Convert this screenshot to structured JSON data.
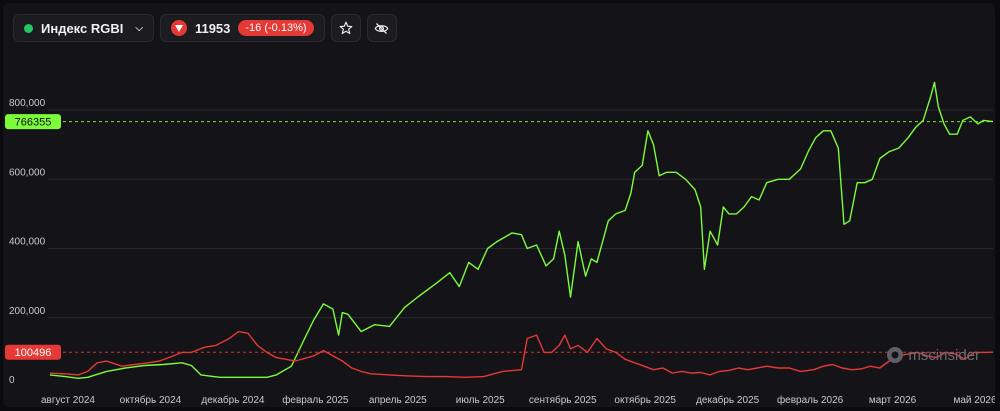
{
  "header": {
    "index_name": "Индекс RGBI",
    "price": "11953",
    "change": "-16 (-0.13%)",
    "colors": {
      "up": "#22c55e",
      "down": "#e53935"
    },
    "icons": [
      "chevron-down-icon",
      "arrow-down-icon",
      "star-icon",
      "eye-off-icon"
    ]
  },
  "watermark": "mscinsider",
  "chart_data": {
    "type": "line",
    "x": [
      "2024-07",
      "2024-08",
      "2024-09",
      "2024-10",
      "2024-11",
      "2024-12",
      "2025-01",
      "2025-02",
      "2025-03",
      "2025-04",
      "2025-05",
      "2025-06",
      "2025-07",
      "2025-08",
      "2025-09",
      "2025-10",
      "2025-11",
      "2025-12",
      "2026-01",
      "2026-02",
      "2026-03",
      "2026-04",
      "2026-05"
    ],
    "x_tick_labels": [
      "август 2024",
      "октябрь 2024",
      "декабрь 2024",
      "февраль 2025",
      "апрель 2025",
      "июль 2025",
      "сентябрь 2025",
      "октябрь 2025",
      "декабрь 2025",
      "февраль 2026",
      "март 2026",
      "май 2026"
    ],
    "y_tick_labels": [
      "0",
      "200,000",
      "400,000",
      "600,000",
      "800,000"
    ],
    "ylim": [
      0,
      900000
    ],
    "grid": true,
    "series": [
      {
        "color": "#7CFC3A",
        "last_value_label": "766355",
        "last_value": 766355,
        "values": [
          [
            0,
            35000
          ],
          [
            8,
            30000
          ],
          [
            15,
            25000
          ],
          [
            20,
            28000
          ],
          [
            30,
            45000
          ],
          [
            40,
            55000
          ],
          [
            50,
            62000
          ],
          [
            60,
            65000
          ],
          [
            70,
            70000
          ],
          [
            75,
            62000
          ],
          [
            80,
            35000
          ],
          [
            90,
            28000
          ],
          [
            105,
            28000
          ],
          [
            115,
            28000
          ],
          [
            120,
            35000
          ],
          [
            128,
            60000
          ],
          [
            135,
            140000
          ],
          [
            140,
            195000
          ],
          [
            145,
            240000
          ],
          [
            150,
            225000
          ],
          [
            153,
            150000
          ],
          [
            155,
            215000
          ],
          [
            158,
            210000
          ],
          [
            165,
            160000
          ],
          [
            172,
            180000
          ],
          [
            180,
            175000
          ],
          [
            188,
            230000
          ],
          [
            195,
            260000
          ],
          [
            205,
            300000
          ],
          [
            212,
            330000
          ],
          [
            217,
            290000
          ],
          [
            222,
            360000
          ],
          [
            227,
            340000
          ],
          [
            232,
            400000
          ],
          [
            237,
            420000
          ],
          [
            245,
            445000
          ],
          [
            250,
            440000
          ],
          [
            253,
            400000
          ],
          [
            258,
            410000
          ],
          [
            263,
            350000
          ],
          [
            267,
            370000
          ],
          [
            270,
            450000
          ],
          [
            273,
            380000
          ],
          [
            276,
            260000
          ],
          [
            280,
            420000
          ],
          [
            284,
            320000
          ],
          [
            287,
            370000
          ],
          [
            290,
            360000
          ],
          [
            296,
            480000
          ],
          [
            300,
            500000
          ],
          [
            305,
            510000
          ],
          [
            308,
            560000
          ],
          [
            310,
            620000
          ],
          [
            314,
            640000
          ],
          [
            317,
            740000
          ],
          [
            320,
            700000
          ],
          [
            323,
            610000
          ],
          [
            327,
            620000
          ],
          [
            332,
            620000
          ],
          [
            337,
            600000
          ],
          [
            342,
            570000
          ],
          [
            345,
            520000
          ],
          [
            347,
            340000
          ],
          [
            350,
            450000
          ],
          [
            354,
            410000
          ],
          [
            357,
            520000
          ],
          [
            360,
            500000
          ],
          [
            364,
            500000
          ],
          [
            368,
            520000
          ],
          [
            372,
            550000
          ],
          [
            376,
            540000
          ],
          [
            380,
            590000
          ],
          [
            386,
            600000
          ],
          [
            392,
            600000
          ],
          [
            398,
            630000
          ],
          [
            402,
            680000
          ],
          [
            406,
            720000
          ],
          [
            410,
            740000
          ],
          [
            414,
            740000
          ],
          [
            418,
            690000
          ],
          [
            421,
            470000
          ],
          [
            424,
            480000
          ],
          [
            428,
            590000
          ],
          [
            432,
            590000
          ],
          [
            436,
            600000
          ],
          [
            440,
            660000
          ],
          [
            445,
            680000
          ],
          [
            450,
            690000
          ],
          [
            455,
            720000
          ],
          [
            459,
            750000
          ],
          [
            463,
            770000
          ],
          [
            467,
            840000
          ],
          [
            469,
            880000
          ],
          [
            471,
            810000
          ],
          [
            474,
            760000
          ],
          [
            477,
            730000
          ],
          [
            481,
            730000
          ],
          [
            484,
            770000
          ],
          [
            488,
            780000
          ],
          [
            492,
            760000
          ],
          [
            495,
            770000
          ],
          [
            500,
            766355
          ]
        ]
      },
      {
        "color": "#e53935",
        "last_value_label": "100496",
        "last_value": 100496,
        "values": [
          [
            0,
            40000
          ],
          [
            8,
            38000
          ],
          [
            15,
            35000
          ],
          [
            20,
            45000
          ],
          [
            25,
            70000
          ],
          [
            30,
            75000
          ],
          [
            38,
            60000
          ],
          [
            45,
            65000
          ],
          [
            52,
            70000
          ],
          [
            58,
            75000
          ],
          [
            63,
            85000
          ],
          [
            70,
            100000
          ],
          [
            75,
            100000
          ],
          [
            82,
            115000
          ],
          [
            88,
            120000
          ],
          [
            95,
            140000
          ],
          [
            100,
            160000
          ],
          [
            105,
            155000
          ],
          [
            110,
            120000
          ],
          [
            115,
            100000
          ],
          [
            120,
            85000
          ],
          [
            125,
            80000
          ],
          [
            130,
            75000
          ],
          [
            140,
            90000
          ],
          [
            145,
            105000
          ],
          [
            150,
            90000
          ],
          [
            155,
            75000
          ],
          [
            160,
            55000
          ],
          [
            165,
            45000
          ],
          [
            170,
            38000
          ],
          [
            180,
            35000
          ],
          [
            190,
            32000
          ],
          [
            200,
            30000
          ],
          [
            210,
            30000
          ],
          [
            220,
            28000
          ],
          [
            230,
            30000
          ],
          [
            240,
            45000
          ],
          [
            250,
            50000
          ],
          [
            253,
            140000
          ],
          [
            258,
            150000
          ],
          [
            262,
            100000
          ],
          [
            266,
            100000
          ],
          [
            270,
            120000
          ],
          [
            273,
            150000
          ],
          [
            276,
            110000
          ],
          [
            280,
            120000
          ],
          [
            285,
            100000
          ],
          [
            290,
            140000
          ],
          [
            295,
            110000
          ],
          [
            300,
            100000
          ],
          [
            305,
            80000
          ],
          [
            310,
            70000
          ],
          [
            315,
            60000
          ],
          [
            320,
            50000
          ],
          [
            325,
            55000
          ],
          [
            330,
            40000
          ],
          [
            335,
            45000
          ],
          [
            340,
            40000
          ],
          [
            345,
            42000
          ],
          [
            350,
            35000
          ],
          [
            355,
            45000
          ],
          [
            360,
            48000
          ],
          [
            365,
            55000
          ],
          [
            370,
            50000
          ],
          [
            375,
            55000
          ],
          [
            380,
            60000
          ],
          [
            386,
            55000
          ],
          [
            392,
            55000
          ],
          [
            398,
            45000
          ],
          [
            405,
            50000
          ],
          [
            410,
            60000
          ],
          [
            415,
            65000
          ],
          [
            420,
            55000
          ],
          [
            425,
            50000
          ],
          [
            430,
            52000
          ],
          [
            435,
            60000
          ],
          [
            440,
            55000
          ],
          [
            445,
            75000
          ],
          [
            450,
            90000
          ],
          [
            455,
            95000
          ],
          [
            460,
            100000
          ],
          [
            465,
            90000
          ],
          [
            470,
            85000
          ],
          [
            475,
            100000
          ],
          [
            480,
            95000
          ],
          [
            485,
            80000
          ],
          [
            490,
            100000
          ],
          [
            495,
            100000
          ],
          [
            500,
            100496
          ]
        ]
      }
    ]
  }
}
